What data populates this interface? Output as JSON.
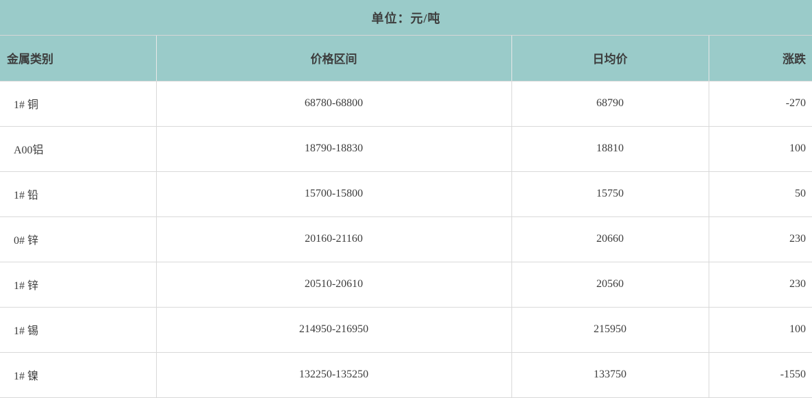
{
  "title": {
    "unit_label": "单位：元/吨"
  },
  "colors": {
    "header_bg": "#9acbc9",
    "grid_line": "#d9d9d9",
    "header_divider": "#e8e8e8",
    "text": "#3d3d3d",
    "row_bg": "#ffffff"
  },
  "chart_data": {
    "type": "table",
    "title": "单位：元/吨",
    "columns": [
      "金属类别",
      "价格区间",
      "日均价",
      "涨跌"
    ],
    "rows": [
      {
        "metal": "1# 铜",
        "range": "68780-68800",
        "avg": "68790",
        "change": "-270"
      },
      {
        "metal": "A00铝",
        "range": "18790-18830",
        "avg": "18810",
        "change": "100"
      },
      {
        "metal": "1# 铅",
        "range": "15700-15800",
        "avg": "15750",
        "change": "50"
      },
      {
        "metal": "0# 锌",
        "range": "20160-21160",
        "avg": "20660",
        "change": "230"
      },
      {
        "metal": "1# 锌",
        "range": "20510-20610",
        "avg": "20560",
        "change": "230"
      },
      {
        "metal": "1# 锡",
        "range": "214950-216950",
        "avg": "215950",
        "change": "100"
      },
      {
        "metal": "1# 镍",
        "range": "132250-135250",
        "avg": "133750",
        "change": "-1550"
      }
    ],
    "layout": {
      "column_alignments": [
        "left",
        "center",
        "center",
        "right"
      ],
      "grid": true,
      "header_background": "#9acbc9"
    }
  }
}
